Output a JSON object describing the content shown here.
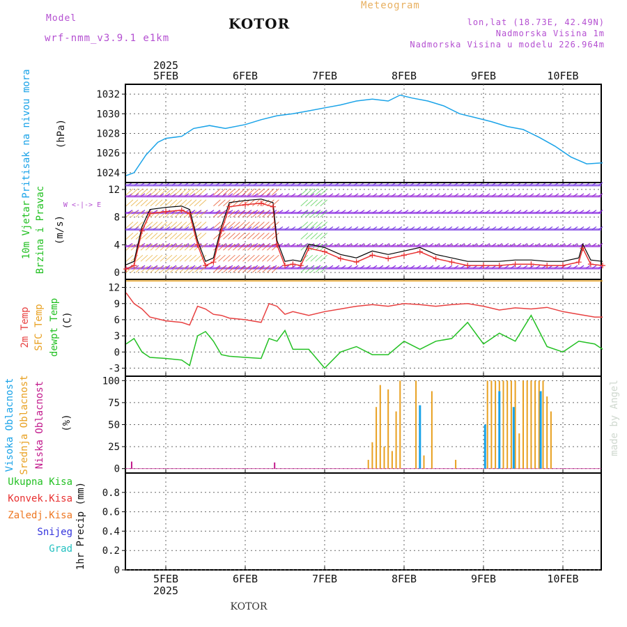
{
  "header": {
    "model_label": "Model",
    "model_name": "wrf-nmm_v3.9.1 e1km",
    "title": "KOTOR",
    "meteogram_label": "Meteogram",
    "coords": "lon,lat (18.73E, 42.49N)",
    "elevation": "Nadmorska Visina 1m",
    "model_elevation": "Nadmorska Visina u modelu 226.964m",
    "footer_title": "KOTOR",
    "watermark": "made by Angel"
  },
  "axes": {
    "year_top": "2025",
    "year_bottom": "2025",
    "date_labels": [
      "5FEB",
      "6FEB",
      "7FEB",
      "8FEB",
      "9FEB",
      "10FEB"
    ]
  },
  "colors": {
    "pressure": "#1aa3e8",
    "wind_speed": "#e83030",
    "wind_gust": "#000000",
    "temp2m": "#e84040",
    "sfc_temp": "#e8a020",
    "dewpoint": "#22c022",
    "high_cloud": "#1aa3e8",
    "mid_cloud": "#e8a020",
    "low_cloud": "#c21a8c",
    "label_purple": "#b44fd1",
    "grid": "#666666"
  },
  "panels": {
    "pressure": {
      "label": "Pritisak na nivou mora",
      "unit": "(hPa)"
    },
    "wind": {
      "label_1": "10m Vjetar",
      "label_2": "Brzina i Pravac",
      "unit": "(m/s)",
      "compass": "W <-|-> E"
    },
    "temperature": {
      "label_1": "2m Temp",
      "label_2": "SFC Temp",
      "label_3": "dewpt Temp",
      "unit": "(C)"
    },
    "clouds": {
      "label_1": "Visoka Oblacnost",
      "label_2": "Srednja Oblacnost",
      "label_3": "Niska Oblacnost",
      "unit": "(%)"
    },
    "precip": {
      "unit": "1hr Precip (mm)",
      "legend": [
        "Ukupna Kisa",
        "Konvek.Kisa",
        "Zaledj.Kisa",
        "Snijeg",
        "Grad"
      ],
      "legend_colors": [
        "#22c022",
        "#e83030",
        "#ee7722",
        "#3333dd",
        "#22c0c0"
      ]
    }
  },
  "chart_data": [
    {
      "type": "line",
      "name": "pressure",
      "ylabel": "Pritisak na nivou mora (hPa)",
      "ylim": [
        1023,
        1033
      ],
      "yticks": [
        1024,
        1026,
        1028,
        1030,
        1032
      ],
      "x_days": [
        4.5,
        4.6,
        4.75,
        4.9,
        5.0,
        5.2,
        5.35,
        5.55,
        5.75,
        6.0,
        6.2,
        6.4,
        6.6,
        6.8,
        7.0,
        7.2,
        7.4,
        7.6,
        7.8,
        7.95,
        8.1,
        8.3,
        8.5,
        8.7,
        8.9,
        9.1,
        9.3,
        9.5,
        9.7,
        9.9,
        10.1,
        10.3,
        10.5
      ],
      "series": [
        {
          "values": [
            1023.7,
            1024.0,
            1025.8,
            1027.1,
            1027.5,
            1027.7,
            1028.5,
            1028.8,
            1028.5,
            1028.9,
            1029.4,
            1029.8,
            1030.0,
            1030.3,
            1030.6,
            1030.9,
            1031.3,
            1031.5,
            1031.3,
            1031.9,
            1031.6,
            1031.3,
            1030.8,
            1030.0,
            1029.6,
            1029.2,
            1028.7,
            1028.4,
            1027.6,
            1026.7,
            1025.6,
            1024.9,
            1025.0
          ]
        }
      ],
      "grid": true
    },
    {
      "type": "line",
      "name": "wind",
      "ylabel": "10m Vjetar Brzina i Pravac (m/s)",
      "ylim": [
        -1,
        13
      ],
      "yticks": [
        0,
        4,
        8,
        12
      ],
      "x_days": [
        4.5,
        4.6,
        4.7,
        4.8,
        5.0,
        5.2,
        5.3,
        5.4,
        5.5,
        5.6,
        5.7,
        5.8,
        6.0,
        6.2,
        6.35,
        6.4,
        6.5,
        6.6,
        6.7,
        6.8,
        7.0,
        7.2,
        7.4,
        7.6,
        7.8,
        8.0,
        8.2,
        8.4,
        8.6,
        8.8,
        9.0,
        9.2,
        9.4,
        9.6,
        9.8,
        10.0,
        10.2,
        10.25,
        10.35,
        10.5
      ],
      "series": [
        {
          "values": [
            0.5,
            1.0,
            6.0,
            8.5,
            8.8,
            9.0,
            8.5,
            4.0,
            1.0,
            1.5,
            6.0,
            9.5,
            9.8,
            10.0,
            9.5,
            4.0,
            1.0,
            1.2,
            1.0,
            3.5,
            3.0,
            2.0,
            1.5,
            2.5,
            2.0,
            2.5,
            3.0,
            2.0,
            1.5,
            1.0,
            1.0,
            1.0,
            1.2,
            1.2,
            1.0,
            1.0,
            1.5,
            3.5,
            1.2,
            1.0
          ]
        }
      ],
      "grid": true
    },
    {
      "type": "line",
      "name": "temperature",
      "ylabel": "Temp (C)",
      "ylim": [
        -4.5,
        13.5
      ],
      "yticks": [
        -3,
        0,
        3,
        6,
        9,
        12
      ],
      "x_days": [
        4.5,
        4.6,
        4.7,
        4.8,
        5.0,
        5.2,
        5.3,
        5.4,
        5.5,
        5.6,
        5.7,
        5.8,
        6.0,
        6.2,
        6.3,
        6.4,
        6.5,
        6.6,
        6.8,
        7.0,
        7.2,
        7.4,
        7.6,
        7.8,
        8.0,
        8.2,
        8.4,
        8.6,
        8.8,
        9.0,
        9.2,
        9.4,
        9.6,
        9.8,
        10.0,
        10.2,
        10.4,
        10.5
      ],
      "series": [
        {
          "name": "2m Temp",
          "values": [
            11.0,
            9.0,
            8.0,
            6.5,
            5.8,
            5.5,
            5.0,
            8.5,
            8.0,
            7.0,
            6.8,
            6.3,
            6.0,
            5.5,
            9.0,
            8.5,
            7.0,
            7.5,
            6.8,
            7.5,
            8.0,
            8.5,
            8.8,
            8.5,
            9.0,
            8.8,
            8.5,
            8.8,
            9.0,
            8.5,
            7.8,
            8.2,
            8.0,
            8.3,
            7.5,
            7.0,
            6.5,
            6.5
          ]
        },
        {
          "name": "SFC Temp",
          "values": [
            13.2,
            13.2,
            13.2,
            13.2,
            13.2,
            13.2,
            13.2,
            13.2,
            13.2,
            13.2,
            13.2,
            13.2,
            13.2,
            13.2,
            13.2,
            13.2,
            13.2,
            13.2,
            13.2,
            13.2,
            13.2,
            13.2,
            13.2,
            13.2,
            13.2,
            13.2,
            13.2,
            13.2,
            13.2,
            13.2,
            13.2,
            13.2,
            13.2,
            13.2,
            13.2,
            13.2,
            13.2,
            13.2
          ]
        },
        {
          "name": "dewpt Temp",
          "values": [
            1.5,
            2.5,
            0.0,
            -1.0,
            -1.2,
            -1.5,
            -2.5,
            3.0,
            3.8,
            2.0,
            -0.5,
            -0.8,
            -1.0,
            -1.2,
            2.5,
            2.0,
            4.0,
            0.5,
            0.5,
            -3.0,
            0.0,
            1.0,
            -0.5,
            -0.5,
            2.0,
            0.5,
            2.0,
            2.5,
            5.5,
            1.5,
            3.5,
            2.0,
            6.8,
            1.0,
            0.0,
            2.0,
            1.5,
            0.5
          ]
        }
      ],
      "grid": true
    },
    {
      "type": "bar",
      "name": "clouds",
      "ylabel": "Oblacnost (%)",
      "ylim": [
        -5,
        105
      ],
      "yticks": [
        0,
        25,
        50,
        75,
        100
      ],
      "series": [
        {
          "name": "Srednja Oblacnost",
          "x_days": [
            7.55,
            7.6,
            7.65,
            7.7,
            7.75,
            7.8,
            7.85,
            7.9,
            7.95,
            8.15,
            8.25,
            8.35,
            8.65,
            9.05,
            9.1,
            9.15,
            9.2,
            9.25,
            9.3,
            9.35,
            9.4,
            9.45,
            9.5,
            9.55,
            9.6,
            9.65,
            9.7,
            9.75,
            9.8,
            9.85
          ],
          "values": [
            10,
            30,
            70,
            95,
            25,
            90,
            20,
            65,
            100,
            100,
            15,
            88,
            10,
            100,
            100,
            100,
            100,
            100,
            100,
            100,
            100,
            40,
            100,
            100,
            100,
            100,
            100,
            100,
            82,
            65
          ]
        },
        {
          "name": "Visoka Oblacnost",
          "x_days": [
            9.02,
            9.2,
            9.38,
            9.72,
            8.2
          ],
          "values": [
            50,
            88,
            70,
            88,
            72
          ]
        },
        {
          "name": "Niska Oblacnost",
          "x_days": [
            4.57,
            6.37
          ],
          "values": [
            8,
            7
          ]
        }
      ],
      "grid": true
    },
    {
      "type": "bar",
      "name": "precip",
      "ylabel": "1hr Precip (mm)",
      "ylim": [
        0,
        1.0
      ],
      "yticks": [
        0,
        0.2,
        0.4,
        0.6,
        0.8
      ],
      "series": [],
      "grid": true
    }
  ]
}
